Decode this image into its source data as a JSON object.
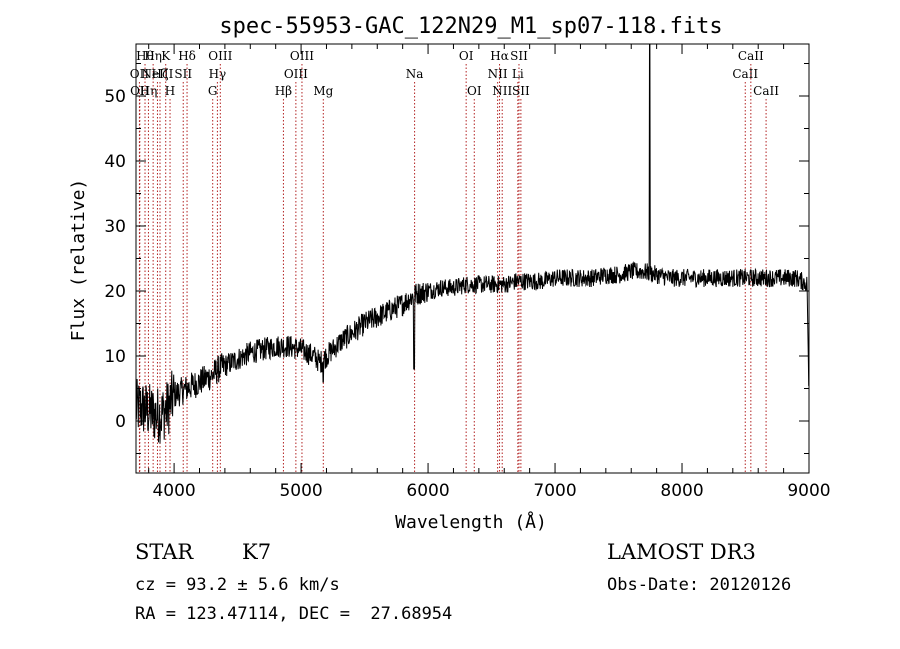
{
  "chart_data": {
    "type": "line",
    "title": "spec-55953-GAC_122N29_M1_sp07-118.fits",
    "xlabel": "Wavelength (Å)",
    "ylabel": "Flux (relative)",
    "xlim": [
      3700,
      9000
    ],
    "ylim": [
      -8,
      58
    ],
    "xticks": [
      4000,
      5000,
      6000,
      7000,
      8000,
      9000
    ],
    "xtick_labels": [
      "4000",
      "5000",
      "6000",
      "7000",
      "8000",
      "9000"
    ],
    "yticks": [
      0,
      10,
      20,
      30,
      40,
      50
    ],
    "ytick_labels": [
      "0",
      "10",
      "20",
      "30",
      "40",
      "50"
    ],
    "grid": false,
    "series": [
      {
        "name": "spectrum",
        "color": "#000000",
        "anchors": [
          [
            3700,
            2
          ],
          [
            3750,
            2
          ],
          [
            3800,
            1.5
          ],
          [
            3850,
            1
          ],
          [
            3900,
            1
          ],
          [
            3950,
            2
          ],
          [
            4000,
            4
          ],
          [
            4050,
            4.5
          ],
          [
            4100,
            5
          ],
          [
            4150,
            5.5
          ],
          [
            4200,
            6
          ],
          [
            4250,
            6.5
          ],
          [
            4300,
            7
          ],
          [
            4350,
            8
          ],
          [
            4400,
            8.5
          ],
          [
            4450,
            9
          ],
          [
            4500,
            9.5
          ],
          [
            4600,
            10.5
          ],
          [
            4700,
            11
          ],
          [
            4800,
            11.5
          ],
          [
            4900,
            11.5
          ],
          [
            5000,
            11
          ],
          [
            5100,
            10
          ],
          [
            5150,
            9
          ],
          [
            5200,
            10
          ],
          [
            5300,
            12
          ],
          [
            5400,
            13.5
          ],
          [
            5500,
            15
          ],
          [
            5600,
            16
          ],
          [
            5700,
            17
          ],
          [
            5800,
            18
          ],
          [
            5900,
            19.5
          ],
          [
            6000,
            20
          ],
          [
            6100,
            20.5
          ],
          [
            6200,
            20.5
          ],
          [
            6300,
            21
          ],
          [
            6400,
            21
          ],
          [
            6500,
            21
          ],
          [
            6600,
            21
          ],
          [
            6700,
            21.5
          ],
          [
            6800,
            21.5
          ],
          [
            6900,
            21.5
          ],
          [
            7000,
            22
          ],
          [
            7100,
            22
          ],
          [
            7200,
            22
          ],
          [
            7300,
            22
          ],
          [
            7400,
            22.5
          ],
          [
            7500,
            22.5
          ],
          [
            7600,
            23
          ],
          [
            7700,
            23
          ],
          [
            7800,
            22.5
          ],
          [
            7900,
            22
          ],
          [
            8000,
            22
          ],
          [
            8100,
            22
          ],
          [
            8200,
            22
          ],
          [
            8300,
            22
          ],
          [
            8400,
            22
          ],
          [
            8500,
            22
          ],
          [
            8600,
            22
          ],
          [
            8700,
            22
          ],
          [
            8800,
            22
          ],
          [
            8900,
            22
          ],
          [
            8990,
            21
          ]
        ],
        "features": [
          {
            "x": 5890,
            "y": 8,
            "note": "Na absorption"
          },
          {
            "x": 5175,
            "y": 6,
            "note": "Mg absorption"
          },
          {
            "x": 7745,
            "y": 58,
            "note": "narrow emission spike"
          },
          {
            "x": 8995,
            "y": 5,
            "note": "red end drop"
          }
        ]
      }
    ],
    "line_markers": [
      {
        "wavelength": 3727,
        "label": "OII",
        "row": 2
      },
      {
        "wavelength": 3730,
        "label": "OII",
        "row": 3
      },
      {
        "wavelength": 3771,
        "label": "Hθ",
        "row": 1
      },
      {
        "wavelength": 3798,
        "label": "Hη",
        "row": 3
      },
      {
        "wavelength": 3835,
        "label": "Hη",
        "row": 1
      },
      {
        "wavelength": 3869,
        "label": "NeIII",
        "row": 2
      },
      {
        "wavelength": 3889,
        "label": "Hζ",
        "row": 2
      },
      {
        "wavelength": 3934,
        "label": "K",
        "row": 1
      },
      {
        "wavelength": 3968,
        "label": "H",
        "row": 3
      },
      {
        "wavelength": 4072,
        "label": "SII",
        "row": 2
      },
      {
        "wavelength": 4102,
        "label": "Hδ",
        "row": 1
      },
      {
        "wavelength": 4304,
        "label": "G",
        "row": 3
      },
      {
        "wavelength": 4341,
        "label": "Hγ",
        "row": 2
      },
      {
        "wavelength": 4364,
        "label": "OIII",
        "row": 1
      },
      {
        "wavelength": 4861,
        "label": "Hβ",
        "row": 3
      },
      {
        "wavelength": 4959,
        "label": "OIII",
        "row": 2
      },
      {
        "wavelength": 5007,
        "label": "OIII",
        "row": 1
      },
      {
        "wavelength": 5175,
        "label": "Mg",
        "row": 3
      },
      {
        "wavelength": 5894,
        "label": "Na",
        "row": 2
      },
      {
        "wavelength": 6300,
        "label": "OI",
        "row": 1
      },
      {
        "wavelength": 6364,
        "label": "OI",
        "row": 3
      },
      {
        "wavelength": 6548,
        "label": "NII",
        "row": 2
      },
      {
        "wavelength": 6563,
        "label": "Hα",
        "row": 1
      },
      {
        "wavelength": 6584,
        "label": "NII",
        "row": 3
      },
      {
        "wavelength": 6707,
        "label": "Li",
        "row": 2
      },
      {
        "wavelength": 6716,
        "label": "SII",
        "row": 1
      },
      {
        "wavelength": 6731,
        "label": "SII",
        "row": 3
      },
      {
        "wavelength": 8498,
        "label": "CaII",
        "row": 2
      },
      {
        "wavelength": 8542,
        "label": "CaII",
        "row": 1
      },
      {
        "wavelength": 8662,
        "label": "CaII",
        "row": 3
      }
    ]
  },
  "info": {
    "class_label": "STAR",
    "subclass": "K7",
    "redshift_text": "cz = 93.2 ± 5.6 km/s",
    "coords_text": "RA = 123.47114, DEC =  27.68954",
    "survey": "LAMOST DR3",
    "obs_date_text": "Obs-Date: 20120126"
  },
  "colors": {
    "marker_line": "#b22222",
    "spectrum": "#000000",
    "axes": "#000000"
  }
}
